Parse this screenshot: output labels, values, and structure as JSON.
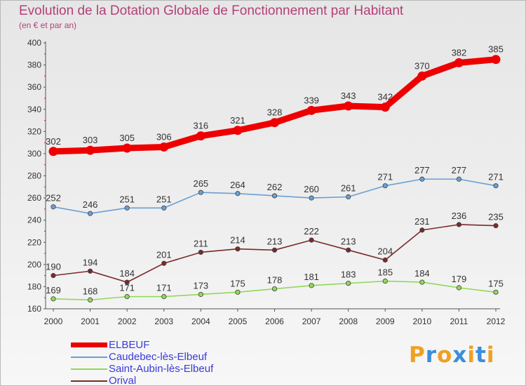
{
  "title": "Evolution de la Dotation Globale de Fonctionnement par Habitant",
  "subtitle": "(en € et par an)",
  "logo": {
    "letters": [
      "P",
      "r",
      "o",
      "x",
      "i",
      "t",
      "i"
    ],
    "colors": [
      "#f0a020",
      "#3c8ed8",
      "#f0a020",
      "#3c8ed8",
      "#f0a020",
      "#3c8ed8",
      "#f0a020"
    ]
  },
  "chart_data": {
    "type": "line",
    "title": "Evolution de la Dotation Globale de Fonctionnement par Habitant",
    "subtitle": "(en € et par an)",
    "x": [
      "2000",
      "2001",
      "2002",
      "2003",
      "2004",
      "2005",
      "2006",
      "2007",
      "2008",
      "2009",
      "2010",
      "2011",
      "2012"
    ],
    "ylim": [
      160,
      400
    ],
    "yticks": [
      160,
      180,
      200,
      220,
      240,
      260,
      280,
      300,
      320,
      340,
      360,
      380,
      400
    ],
    "grid": false,
    "legend_position": "bottom-left",
    "series": [
      {
        "name": "ELBEUF",
        "color": "#ee0000",
        "values": [
          302,
          303,
          305,
          306,
          316,
          321,
          328,
          339,
          343,
          342,
          370,
          382,
          385
        ]
      },
      {
        "name": "Caudebec-lès-Elbeuf",
        "color": "#6a9fd4",
        "values": [
          252,
          246,
          251,
          251,
          265,
          264,
          262,
          260,
          261,
          271,
          277,
          277,
          271
        ]
      },
      {
        "name": "Saint-Aubin-lès-Elbeuf",
        "color": "#92d85a",
        "values": [
          169,
          168,
          171,
          171,
          173,
          175,
          178,
          181,
          183,
          185,
          184,
          179,
          175
        ]
      },
      {
        "name": "Orival",
        "color": "#7a2a2a",
        "values": [
          190,
          194,
          184,
          201,
          211,
          214,
          213,
          222,
          213,
          204,
          231,
          236,
          235
        ]
      }
    ]
  }
}
